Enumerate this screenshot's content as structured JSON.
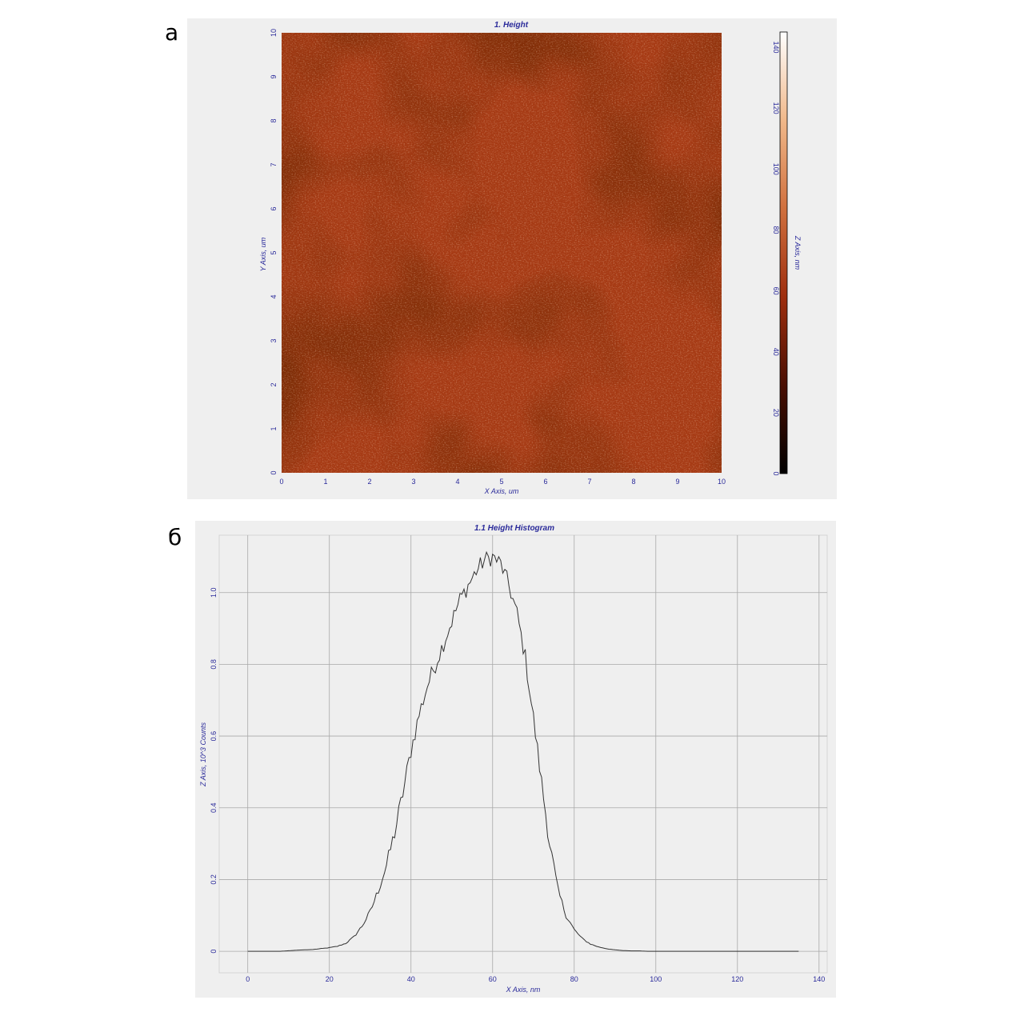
{
  "panels": {
    "a_label": "а",
    "b_label": "б"
  },
  "chart_data": [
    {
      "type": "heatmap",
      "title": "1. Height",
      "xlabel": "X Axis, um",
      "ylabel": "Y Axis, um",
      "xlim": [
        0,
        10
      ],
      "ylim": [
        0,
        10
      ],
      "x_ticks": [
        "0",
        "1",
        "2",
        "3",
        "4",
        "5",
        "6",
        "7",
        "8",
        "9",
        "10"
      ],
      "y_ticks": [
        "0",
        "1",
        "2",
        "3",
        "4",
        "5",
        "6",
        "7",
        "8",
        "9",
        "10"
      ],
      "colorbar": {
        "label": "Z Axis, nm",
        "range": [
          0,
          145
        ],
        "ticks": [
          "0",
          "20",
          "40",
          "60",
          "80",
          "100",
          "120",
          "140"
        ],
        "colors": [
          "#000000",
          "#4a0f03",
          "#9e2e0e",
          "#d0703e",
          "#f0b88a",
          "#ffffff"
        ]
      },
      "surface_color": "#a63a14"
    },
    {
      "type": "line",
      "title": "1.1 Height Histogram",
      "xlabel": "X Axis, nm",
      "ylabel": "Z Axis, 10^3 Counts",
      "xlim": [
        -7,
        142
      ],
      "ylim": [
        -0.06,
        1.16
      ],
      "x_ticks": [
        "0",
        "20",
        "40",
        "60",
        "80",
        "100",
        "120",
        "140"
      ],
      "y_ticks": [
        "0",
        "0.2",
        "0.4",
        "0.6",
        "0.8",
        "1.0"
      ],
      "grid": true,
      "series": [
        {
          "line_color": "#333333",
          "x": [
            0,
            8,
            12,
            16,
            20,
            22,
            24,
            26,
            28,
            30,
            32,
            34,
            36,
            38,
            40,
            42,
            44,
            46,
            48,
            50,
            52,
            54,
            56,
            58,
            60,
            62,
            64,
            66,
            68,
            70,
            72,
            74,
            76,
            78,
            80,
            82,
            84,
            86,
            88,
            90,
            92,
            94,
            96,
            98,
            100,
            110,
            120,
            130,
            135
          ],
          "y": [
            0,
            0,
            0.003,
            0.005,
            0.01,
            0.014,
            0.022,
            0.04,
            0.07,
            0.11,
            0.17,
            0.24,
            0.33,
            0.44,
            0.56,
            0.66,
            0.74,
            0.8,
            0.86,
            0.92,
            0.98,
            1.02,
            1.06,
            1.09,
            1.1,
            1.08,
            1.02,
            0.94,
            0.82,
            0.65,
            0.47,
            0.3,
            0.17,
            0.1,
            0.06,
            0.035,
            0.02,
            0.012,
            0.007,
            0.004,
            0.002,
            0.001,
            0.001,
            0,
            0,
            0,
            0,
            0,
            0
          ]
        }
      ]
    }
  ]
}
